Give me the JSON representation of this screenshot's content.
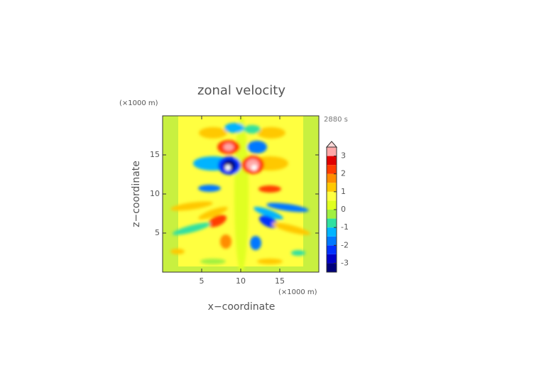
{
  "chart_data": {
    "type": "contour",
    "title": "zonal velocity",
    "x_label": "x−coordinate",
    "y_label": "z−coordinate",
    "x_unit": "(×1000 m)",
    "y_unit": "(×1000 m)",
    "time_label": "2880 s",
    "xlim": [
      0,
      20
    ],
    "ylim": [
      0,
      20
    ],
    "xticks": [
      5,
      10,
      15
    ],
    "yticks": [
      5,
      10,
      15
    ],
    "colorbar": {
      "clim": [
        -3.5,
        3.5
      ],
      "ticks": [
        -3,
        -2,
        -1,
        0,
        1,
        2,
        3
      ],
      "extend": "max",
      "colors": [
        "#00007a",
        "#0000c8",
        "#0030ff",
        "#0078ff",
        "#00b4ff",
        "#30e0a0",
        "#a0f040",
        "#e0ff20",
        "#ffff40",
        "#ffc800",
        "#ff8c00",
        "#ff3c00",
        "#e00000",
        "#ffa8a8"
      ],
      "over_color": "#ffd8d8"
    }
  }
}
